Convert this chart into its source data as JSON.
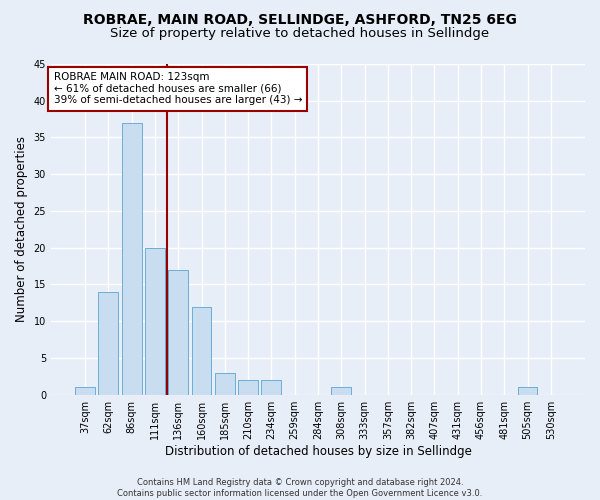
{
  "title1": "ROBRAE, MAIN ROAD, SELLINDGE, ASHFORD, TN25 6EG",
  "title2": "Size of property relative to detached houses in Sellindge",
  "xlabel": "Distribution of detached houses by size in Sellindge",
  "ylabel": "Number of detached properties",
  "categories": [
    "37sqm",
    "62sqm",
    "86sqm",
    "111sqm",
    "136sqm",
    "160sqm",
    "185sqm",
    "210sqm",
    "234sqm",
    "259sqm",
    "284sqm",
    "308sqm",
    "333sqm",
    "357sqm",
    "382sqm",
    "407sqm",
    "431sqm",
    "456sqm",
    "481sqm",
    "505sqm",
    "530sqm"
  ],
  "values": [
    1,
    14,
    37,
    20,
    17,
    12,
    3,
    2,
    2,
    0,
    0,
    1,
    0,
    0,
    0,
    0,
    0,
    0,
    0,
    1,
    0
  ],
  "bar_color": "#c8ddf0",
  "bar_edge_color": "#6aaed6",
  "bar_linewidth": 0.7,
  "vline_x": 3.5,
  "vline_color": "#990000",
  "vline_linewidth": 1.5,
  "annotation_line1": "ROBRAE MAIN ROAD: 123sqm",
  "annotation_line2": "← 61% of detached houses are smaller (66)",
  "annotation_line3": "39% of semi-detached houses are larger (43) →",
  "annotation_box_color": "#990000",
  "annotation_box_fill": "white",
  "ylim_max": 45,
  "yticks": [
    0,
    5,
    10,
    15,
    20,
    25,
    30,
    35,
    40,
    45
  ],
  "footer_line1": "Contains HM Land Registry data © Crown copyright and database right 2024.",
  "footer_line2": "Contains public sector information licensed under the Open Government Licence v3.0.",
  "bg_color": "#e8eef8",
  "grid_color": "#ffffff",
  "title1_fontsize": 10,
  "title2_fontsize": 9.5,
  "axis_label_fontsize": 8.5,
  "tick_fontsize": 7,
  "annotation_fontsize": 7.5,
  "footer_fontsize": 6
}
